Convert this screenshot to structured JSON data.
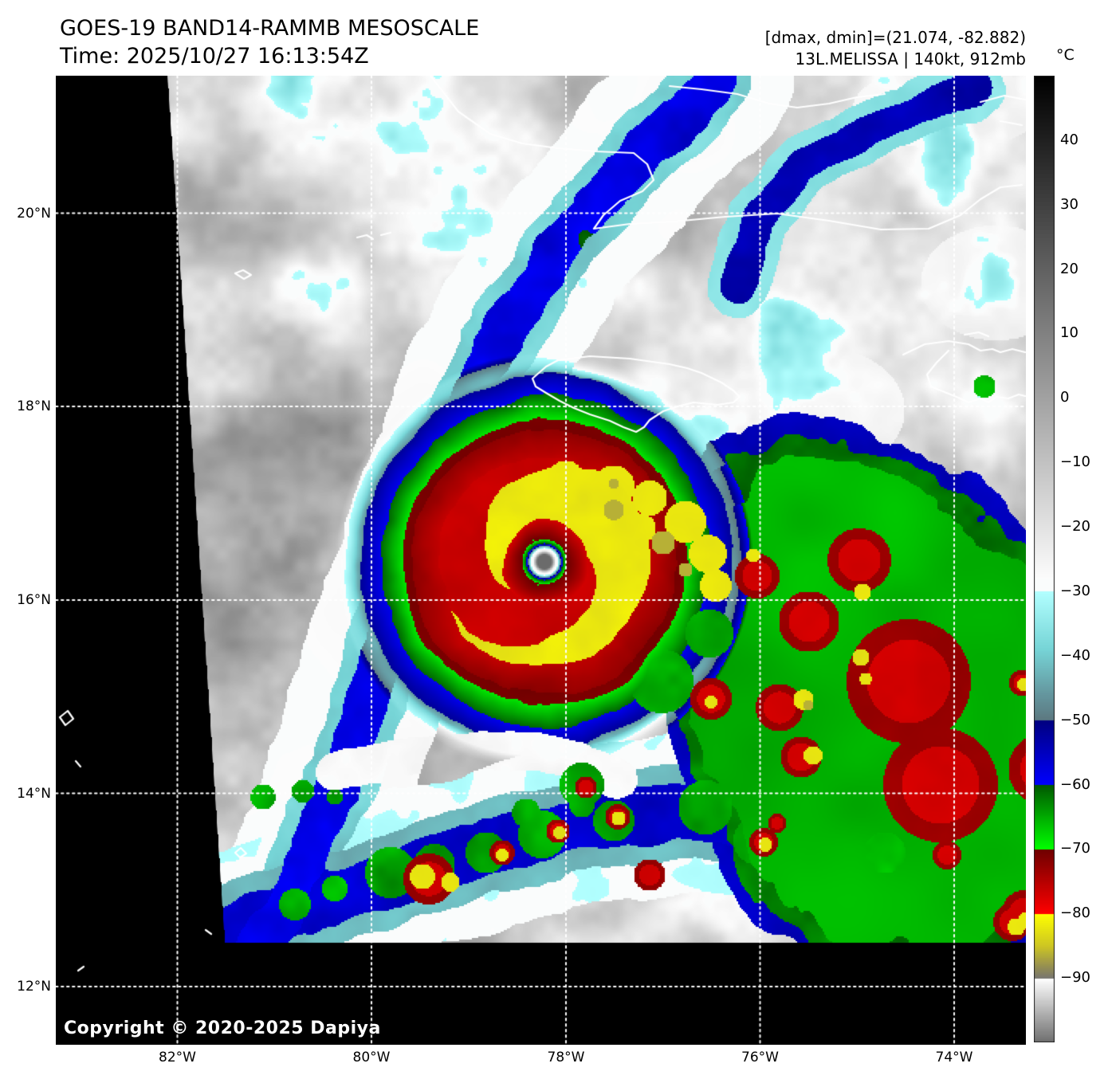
{
  "header": {
    "title": "GOES-19 BAND14-RAMMB MESOSCALE",
    "time": "Time: 2025/10/27 16:13:54Z"
  },
  "info": {
    "range_line": "[dmax, dmin]=(21.074, -82.882)",
    "storm_line": "13L.MELISSA | 140kt, 912mb"
  },
  "colorbar": {
    "unit": "°C",
    "ticks": [
      "40",
      "30",
      "20",
      "10",
      "0",
      "−10",
      "−20",
      "−30",
      "−40",
      "−50",
      "−60",
      "−70",
      "−80",
      "−90"
    ],
    "tick_values": [
      40,
      30,
      20,
      10,
      0,
      -10,
      -20,
      -30,
      -40,
      -50,
      -60,
      -70,
      -80,
      -90
    ],
    "top_value": 50,
    "bottom_value": -100,
    "palette": {
      "hot_black": "#000000",
      "gray_mid": "#a2a2a2",
      "white_warm_edge": "#fcfcfc",
      "cyan_start": "#b2ffff",
      "teal_dark": "#5c7880",
      "navy": "#000080",
      "blue": "#0000ff",
      "green_dark": "#005800",
      "green": "#00ff00",
      "red_dark": "#6e0000",
      "red": "#ff0000",
      "yellow": "#ffff00",
      "olive": "#968f52",
      "cold_white": "#ffffff",
      "cold_gray_floor": "#6e6e6e"
    }
  },
  "axes": {
    "lat_labels": [
      "20°N",
      "18°N",
      "16°N",
      "14°N",
      "12°N"
    ],
    "lon_labels": [
      "82°W",
      "80°W",
      "78°W",
      "76°W",
      "74°W"
    ]
  },
  "map": {
    "copyright": "Copyright © 2020-2025 Dapiya",
    "coastline_color": "#ffffff",
    "grid_color": "#ffffff",
    "background": "#000000"
  }
}
